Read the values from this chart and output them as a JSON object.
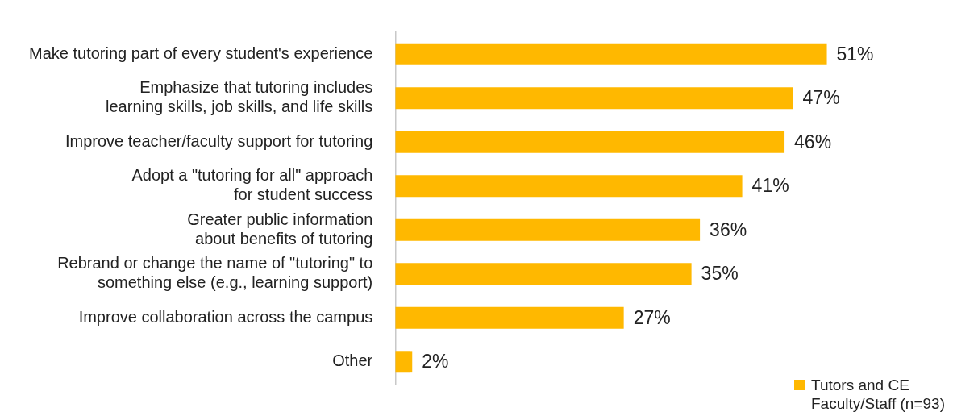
{
  "chart_data": {
    "type": "bar",
    "orientation": "horizontal",
    "legend": "bottom right",
    "categories": [
      "Make tutoring part of every student's experience",
      "Emphasize that tutoring includes\nlearning skills, job skills, and life skills",
      "Improve teacher/faculty support for tutoring",
      "Adopt a \"tutoring for all\" approach\nfor student success",
      "Greater public information\nabout benefits of tutoring",
      "Rebrand or change the name of \"tutoring\" to\nsomething else (e.g., learning support)",
      "Improve collaboration across the campus",
      "Other"
    ],
    "series": [
      {
        "name": "Tutors and CE\nFaculty/Staff (n=93)",
        "color": "#ffb800",
        "values": [
          51,
          47,
          46,
          41,
          36,
          35,
          27,
          2
        ],
        "value_labels": [
          "51%",
          "47%",
          "46%",
          "41%",
          "36%",
          "35%",
          "27%",
          "2%"
        ]
      }
    ]
  }
}
